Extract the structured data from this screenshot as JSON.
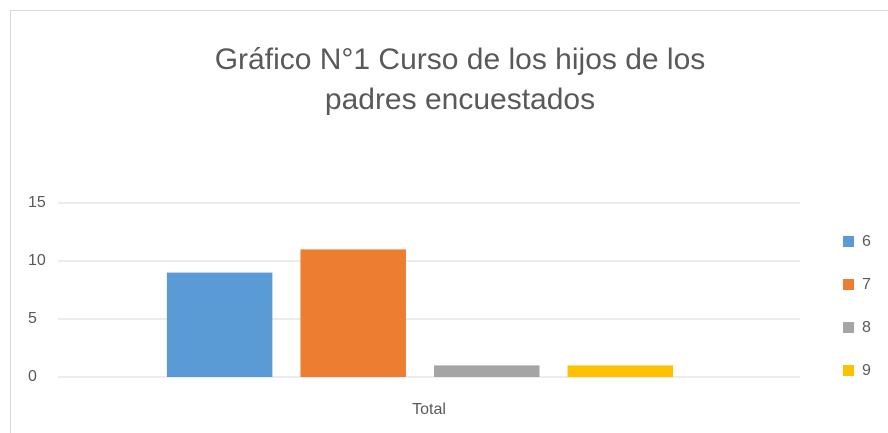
{
  "chart_data": {
    "type": "bar",
    "title": "Gráfico N°1 Curso de los hijos de los padres encuestados",
    "categories": [
      "Total"
    ],
    "series": [
      {
        "name": "6",
        "color": "#5b9bd5",
        "values": [
          9
        ]
      },
      {
        "name": "7",
        "color": "#ed7d31",
        "values": [
          11
        ]
      },
      {
        "name": "8",
        "color": "#a5a5a5",
        "values": [
          1
        ]
      },
      {
        "name": "9",
        "color": "#ffc000",
        "values": [
          1
        ]
      }
    ],
    "ylim": [
      0,
      15
    ],
    "yticks": [
      0,
      5,
      10,
      15
    ],
    "grid": true,
    "legend": "right"
  }
}
